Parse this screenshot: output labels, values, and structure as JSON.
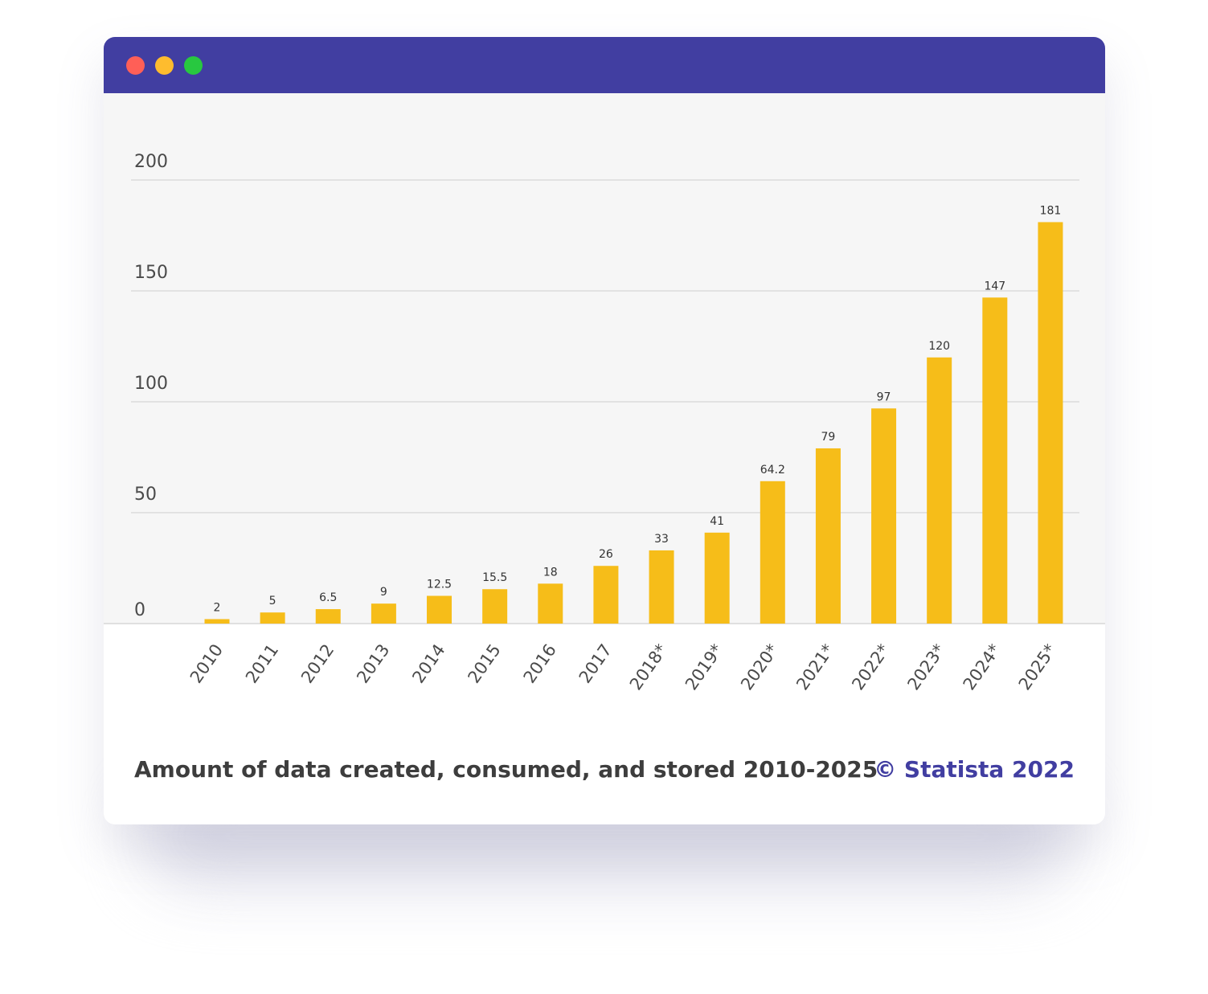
{
  "window": {
    "titlebar_color": "#413ea1",
    "controls": [
      {
        "name": "close",
        "color": "#ff5f57"
      },
      {
        "name": "minimize",
        "color": "#febc2e"
      },
      {
        "name": "maximize",
        "color": "#28c840"
      }
    ]
  },
  "footer": {
    "caption": "Amount of data created, consumed, and stored 2010-2025",
    "source": "© Statista 2022",
    "source_color": "#413ea1"
  },
  "chart_data": {
    "type": "bar",
    "categories": [
      "2010",
      "2011",
      "2012",
      "2013",
      "2014",
      "2015",
      "2016",
      "2017",
      "2018*",
      "2019*",
      "2020*",
      "2021*",
      "2022*",
      "2023*",
      "2024*",
      "2025*"
    ],
    "values": [
      2,
      5,
      6.5,
      9,
      12.5,
      15.5,
      18,
      26,
      33,
      41,
      64.2,
      79,
      97,
      120,
      147,
      181
    ],
    "value_labels": [
      "2",
      "5",
      "6.5",
      "9",
      "12.5",
      "15.5",
      "18",
      "26",
      "33",
      "41",
      "64.2",
      "79",
      "97",
      "120",
      "147",
      "181"
    ],
    "y_ticks": [
      "0",
      "50",
      "100",
      "150",
      "200"
    ],
    "ylim": [
      0,
      200
    ],
    "bar_color": "#f6bd19",
    "grid": true,
    "title": "",
    "xlabel": "",
    "ylabel": ""
  }
}
